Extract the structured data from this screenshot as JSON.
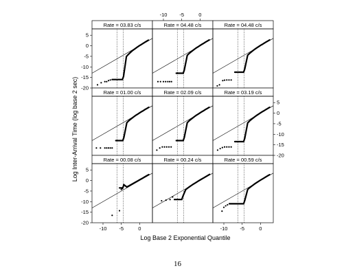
{
  "page": {
    "page_number": "16"
  },
  "chart_data": {
    "type": "scatter",
    "ylabel": "Log Inter-Arrival Time (log base 2 sec)",
    "xlabel": "Log Base 2 Exponential Quantile",
    "x_ticks": [
      -10,
      -5,
      0
    ],
    "y_ticks": [
      5,
      0,
      -5,
      -10,
      -15,
      -20
    ],
    "xlim": [
      -13,
      3.5
    ],
    "ylim": [
      -20,
      8
    ],
    "grid": false,
    "panel_rows": [
      [
        {
          "title": "Rate = 03.83 c/s",
          "vlines": [
            -6.2,
            -4.5
          ],
          "plateau_y": -16,
          "plateau_x": [
            -7.5,
            -4.7
          ],
          "points": [
            {
              "x": -11.5,
              "y": -18.5
            },
            {
              "x": -10.5,
              "y": -17.5
            },
            {
              "x": -9.5,
              "y": -17
            },
            {
              "x": -9,
              "y": -17
            },
            {
              "x": -8.5,
              "y": -16.5
            },
            {
              "x": -8,
              "y": -16.2
            }
          ]
        },
        {
          "title": "Rate = 04.48 c/s",
          "vlines": [
            -6.2,
            -4.5
          ],
          "plateau_y": -13,
          "plateau_x": [
            -6.5,
            -4.6
          ],
          "points": [
            {
              "x": -11.5,
              "y": -17
            },
            {
              "x": -10.8,
              "y": -17
            },
            {
              "x": -10,
              "y": -17
            },
            {
              "x": -9.4,
              "y": -17
            },
            {
              "x": -8.8,
              "y": -17
            },
            {
              "x": -8.3,
              "y": -17
            },
            {
              "x": -7.8,
              "y": -17
            }
          ]
        },
        {
          "title": "Rate = 04.48 c/s",
          "vlines": [
            -6.2,
            -4.5
          ],
          "plateau_y": -12.5,
          "plateau_x": [
            -7,
            -4.6
          ],
          "points": [
            {
              "x": -11.8,
              "y": -19
            },
            {
              "x": -11.2,
              "y": -18.5
            },
            {
              "x": -10.3,
              "y": -16.5
            },
            {
              "x": -9.8,
              "y": -16.3
            },
            {
              "x": -9.2,
              "y": -16.2
            },
            {
              "x": -8.6,
              "y": -16.2
            },
            {
              "x": -8,
              "y": -16.2
            }
          ]
        }
      ],
      [
        {
          "title": "Rate = 01.00 c/s",
          "vlines": [
            -6.2,
            -4.5
          ],
          "plateau_y": -13,
          "plateau_x": [
            -6.5,
            -4.6
          ],
          "points": [
            {
              "x": -11.8,
              "y": -16.5
            },
            {
              "x": -10.7,
              "y": -16.5
            },
            {
              "x": -9.5,
              "y": -16.5
            },
            {
              "x": -9,
              "y": -16.5
            },
            {
              "x": -8.5,
              "y": -16.5
            },
            {
              "x": -8,
              "y": -16.5
            },
            {
              "x": -7.5,
              "y": -16.5
            }
          ]
        },
        {
          "title": "Rate = 02.09 c/s",
          "vlines": [
            -6.2,
            -4.5
          ],
          "plateau_y": -13,
          "plateau_x": [
            -6.5,
            -4.6
          ],
          "points": [
            {
              "x": -11.8,
              "y": -17.5
            },
            {
              "x": -11,
              "y": -16.5
            },
            {
              "x": -10.3,
              "y": -16
            },
            {
              "x": -9.7,
              "y": -16
            },
            {
              "x": -9.1,
              "y": -16
            },
            {
              "x": -8.5,
              "y": -16
            },
            {
              "x": -7.9,
              "y": -16
            }
          ]
        },
        {
          "title": "Rate = 03.19 c/s",
          "vlines": [
            -6.2,
            -4.5
          ],
          "plateau_y": -13.5,
          "plateau_x": [
            -7,
            -4.6
          ],
          "points": [
            {
              "x": -11.7,
              "y": -17.5
            },
            {
              "x": -11,
              "y": -16.8
            },
            {
              "x": -10.4,
              "y": -16.3
            },
            {
              "x": -9.8,
              "y": -16
            },
            {
              "x": -9.2,
              "y": -16
            },
            {
              "x": -8.6,
              "y": -16
            },
            {
              "x": -8,
              "y": -16
            }
          ]
        }
      ],
      [
        {
          "title": "Rate = 00.08 c/s",
          "vlines": [
            -6.2,
            -4.5
          ],
          "plateau_y": -3.5,
          "plateau_x": [
            -5.5,
            -4.6
          ],
          "points": [
            {
              "x": -7.5,
              "y": -16.5
            },
            {
              "x": -5.5,
              "y": -14.3
            },
            {
              "x": -5,
              "y": -4.2
            },
            {
              "x": -4.7,
              "y": -3.8
            }
          ]
        },
        {
          "title": "Rate = 00.24 c/s",
          "vlines": [
            -6.2,
            -4.5
          ],
          "plateau_y": -9,
          "plateau_x": [
            -7,
            -5
          ],
          "points": [
            {
              "x": -10.5,
              "y": -9.6
            },
            {
              "x": -9.3,
              "y": -9.3
            },
            {
              "x": -8.2,
              "y": -9
            },
            {
              "x": -7.5,
              "y": -7.8
            }
          ]
        },
        {
          "title": "Rate = 00.59 c/s",
          "vlines": [
            -6.2,
            -4.5
          ],
          "plateau_y": -11,
          "plateau_x": [
            -8.5,
            -4.6
          ],
          "points": [
            {
              "x": -10.5,
              "y": -14.5
            },
            {
              "x": -10,
              "y": -12.7
            },
            {
              "x": -9.5,
              "y": -12
            },
            {
              "x": -9,
              "y": -11.5
            }
          ]
        }
      ]
    ]
  }
}
